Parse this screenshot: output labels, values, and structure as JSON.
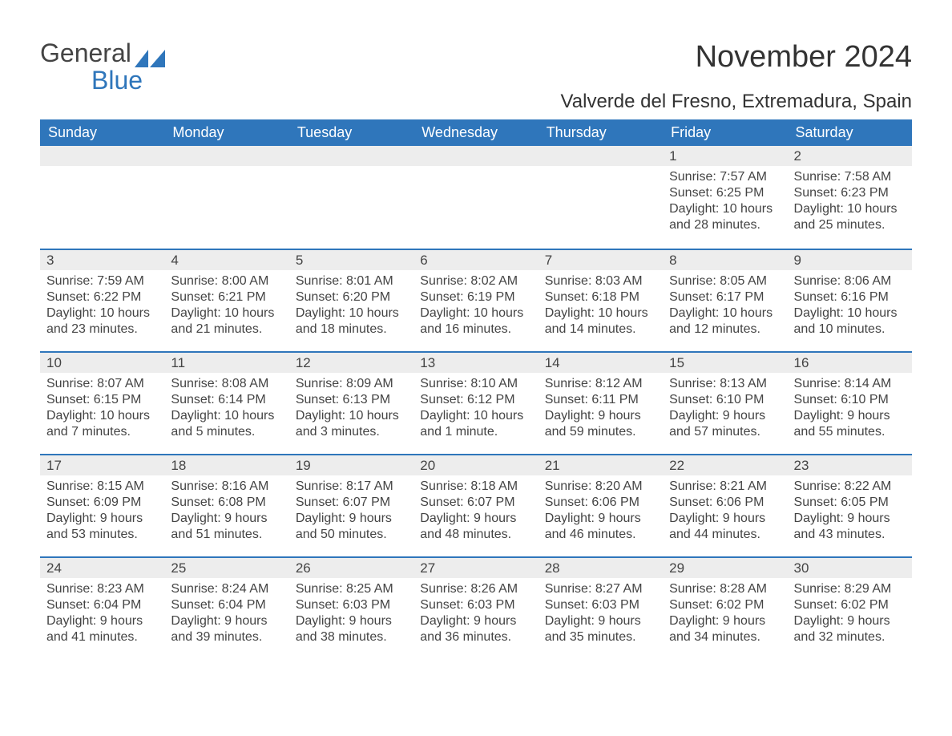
{
  "logo": {
    "line1": "General",
    "line2": "Blue"
  },
  "title": "November 2024",
  "location": "Valverde del Fresno, Extremadura, Spain",
  "colors": {
    "accent": "#2f76bb",
    "header_text": "#ffffff",
    "daynum_bg": "#ededed",
    "body_text": "#444444",
    "background": "#ffffff"
  },
  "day_names": [
    "Sunday",
    "Monday",
    "Tuesday",
    "Wednesday",
    "Thursday",
    "Friday",
    "Saturday"
  ],
  "weeks": [
    [
      {
        "empty": true
      },
      {
        "empty": true
      },
      {
        "empty": true
      },
      {
        "empty": true
      },
      {
        "empty": true
      },
      {
        "day": "1",
        "sunrise": "Sunrise: 7:57 AM",
        "sunset": "Sunset: 6:25 PM",
        "daylight": "Daylight: 10 hours and 28 minutes."
      },
      {
        "day": "2",
        "sunrise": "Sunrise: 7:58 AM",
        "sunset": "Sunset: 6:23 PM",
        "daylight": "Daylight: 10 hours and 25 minutes."
      }
    ],
    [
      {
        "day": "3",
        "sunrise": "Sunrise: 7:59 AM",
        "sunset": "Sunset: 6:22 PM",
        "daylight": "Daylight: 10 hours and 23 minutes."
      },
      {
        "day": "4",
        "sunrise": "Sunrise: 8:00 AM",
        "sunset": "Sunset: 6:21 PM",
        "daylight": "Daylight: 10 hours and 21 minutes."
      },
      {
        "day": "5",
        "sunrise": "Sunrise: 8:01 AM",
        "sunset": "Sunset: 6:20 PM",
        "daylight": "Daylight: 10 hours and 18 minutes."
      },
      {
        "day": "6",
        "sunrise": "Sunrise: 8:02 AM",
        "sunset": "Sunset: 6:19 PM",
        "daylight": "Daylight: 10 hours and 16 minutes."
      },
      {
        "day": "7",
        "sunrise": "Sunrise: 8:03 AM",
        "sunset": "Sunset: 6:18 PM",
        "daylight": "Daylight: 10 hours and 14 minutes."
      },
      {
        "day": "8",
        "sunrise": "Sunrise: 8:05 AM",
        "sunset": "Sunset: 6:17 PM",
        "daylight": "Daylight: 10 hours and 12 minutes."
      },
      {
        "day": "9",
        "sunrise": "Sunrise: 8:06 AM",
        "sunset": "Sunset: 6:16 PM",
        "daylight": "Daylight: 10 hours and 10 minutes."
      }
    ],
    [
      {
        "day": "10",
        "sunrise": "Sunrise: 8:07 AM",
        "sunset": "Sunset: 6:15 PM",
        "daylight": "Daylight: 10 hours and 7 minutes."
      },
      {
        "day": "11",
        "sunrise": "Sunrise: 8:08 AM",
        "sunset": "Sunset: 6:14 PM",
        "daylight": "Daylight: 10 hours and 5 minutes."
      },
      {
        "day": "12",
        "sunrise": "Sunrise: 8:09 AM",
        "sunset": "Sunset: 6:13 PM",
        "daylight": "Daylight: 10 hours and 3 minutes."
      },
      {
        "day": "13",
        "sunrise": "Sunrise: 8:10 AM",
        "sunset": "Sunset: 6:12 PM",
        "daylight": "Daylight: 10 hours and 1 minute."
      },
      {
        "day": "14",
        "sunrise": "Sunrise: 8:12 AM",
        "sunset": "Sunset: 6:11 PM",
        "daylight": "Daylight: 9 hours and 59 minutes."
      },
      {
        "day": "15",
        "sunrise": "Sunrise: 8:13 AM",
        "sunset": "Sunset: 6:10 PM",
        "daylight": "Daylight: 9 hours and 57 minutes."
      },
      {
        "day": "16",
        "sunrise": "Sunrise: 8:14 AM",
        "sunset": "Sunset: 6:10 PM",
        "daylight": "Daylight: 9 hours and 55 minutes."
      }
    ],
    [
      {
        "day": "17",
        "sunrise": "Sunrise: 8:15 AM",
        "sunset": "Sunset: 6:09 PM",
        "daylight": "Daylight: 9 hours and 53 minutes."
      },
      {
        "day": "18",
        "sunrise": "Sunrise: 8:16 AM",
        "sunset": "Sunset: 6:08 PM",
        "daylight": "Daylight: 9 hours and 51 minutes."
      },
      {
        "day": "19",
        "sunrise": "Sunrise: 8:17 AM",
        "sunset": "Sunset: 6:07 PM",
        "daylight": "Daylight: 9 hours and 50 minutes."
      },
      {
        "day": "20",
        "sunrise": "Sunrise: 8:18 AM",
        "sunset": "Sunset: 6:07 PM",
        "daylight": "Daylight: 9 hours and 48 minutes."
      },
      {
        "day": "21",
        "sunrise": "Sunrise: 8:20 AM",
        "sunset": "Sunset: 6:06 PM",
        "daylight": "Daylight: 9 hours and 46 minutes."
      },
      {
        "day": "22",
        "sunrise": "Sunrise: 8:21 AM",
        "sunset": "Sunset: 6:06 PM",
        "daylight": "Daylight: 9 hours and 44 minutes."
      },
      {
        "day": "23",
        "sunrise": "Sunrise: 8:22 AM",
        "sunset": "Sunset: 6:05 PM",
        "daylight": "Daylight: 9 hours and 43 minutes."
      }
    ],
    [
      {
        "day": "24",
        "sunrise": "Sunrise: 8:23 AM",
        "sunset": "Sunset: 6:04 PM",
        "daylight": "Daylight: 9 hours and 41 minutes."
      },
      {
        "day": "25",
        "sunrise": "Sunrise: 8:24 AM",
        "sunset": "Sunset: 6:04 PM",
        "daylight": "Daylight: 9 hours and 39 minutes."
      },
      {
        "day": "26",
        "sunrise": "Sunrise: 8:25 AM",
        "sunset": "Sunset: 6:03 PM",
        "daylight": "Daylight: 9 hours and 38 minutes."
      },
      {
        "day": "27",
        "sunrise": "Sunrise: 8:26 AM",
        "sunset": "Sunset: 6:03 PM",
        "daylight": "Daylight: 9 hours and 36 minutes."
      },
      {
        "day": "28",
        "sunrise": "Sunrise: 8:27 AM",
        "sunset": "Sunset: 6:03 PM",
        "daylight": "Daylight: 9 hours and 35 minutes."
      },
      {
        "day": "29",
        "sunrise": "Sunrise: 8:28 AM",
        "sunset": "Sunset: 6:02 PM",
        "daylight": "Daylight: 9 hours and 34 minutes."
      },
      {
        "day": "30",
        "sunrise": "Sunrise: 8:29 AM",
        "sunset": "Sunset: 6:02 PM",
        "daylight": "Daylight: 9 hours and 32 minutes."
      }
    ]
  ]
}
